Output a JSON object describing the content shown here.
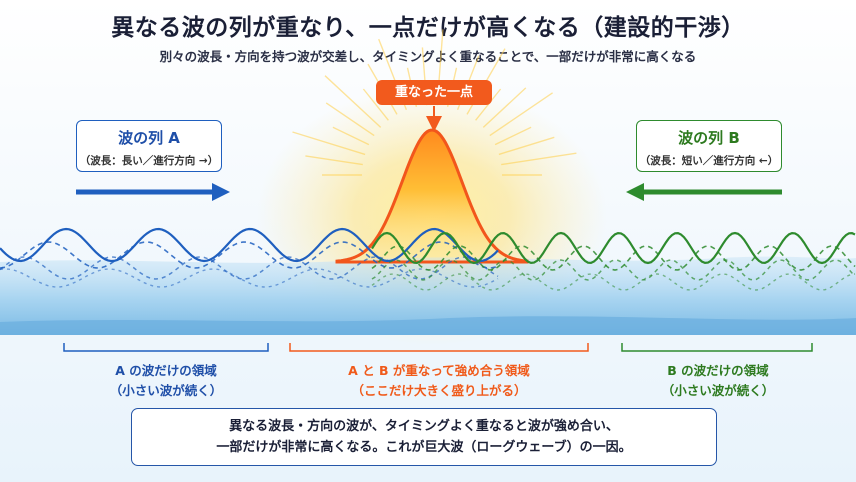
{
  "title": "異なる波の列が重なり、一点だけが高くなる（建設的干渉）",
  "subtitle": "別々の波長・方向を持つ波が交差し、タイミングよく重なることで、一部だけが非常に高くなる",
  "peak_label": "重なった一点",
  "wave_a": {
    "name": "波の列 A",
    "detail": "（波長：長い／進行方向 →）",
    "color": "#1f5fbf"
  },
  "wave_b": {
    "name": "波の列 B",
    "detail": "（波長：短い／進行方向 ←）",
    "color": "#2e8b2e"
  },
  "regions": {
    "a": {
      "line1": "A の波だけの領域",
      "line2": "（小さい波が続く）"
    },
    "mid": {
      "line1": "A と B が重なって強め合う領域",
      "line2": "（ここだけ大きく盛り上がる）"
    },
    "b": {
      "line1": "B の波だけの領域",
      "line2": "（小さい波が続く）"
    }
  },
  "summary": {
    "line1": "異なる波長・方向の波が、タイミングよく重なると波が強め合い、",
    "line2": "一部だけが非常に高くなる。これが巨大波（ローグウェーブ）の一因。"
  },
  "colors": {
    "peak": "#f25a1d",
    "water": "#8ec5ea"
  }
}
